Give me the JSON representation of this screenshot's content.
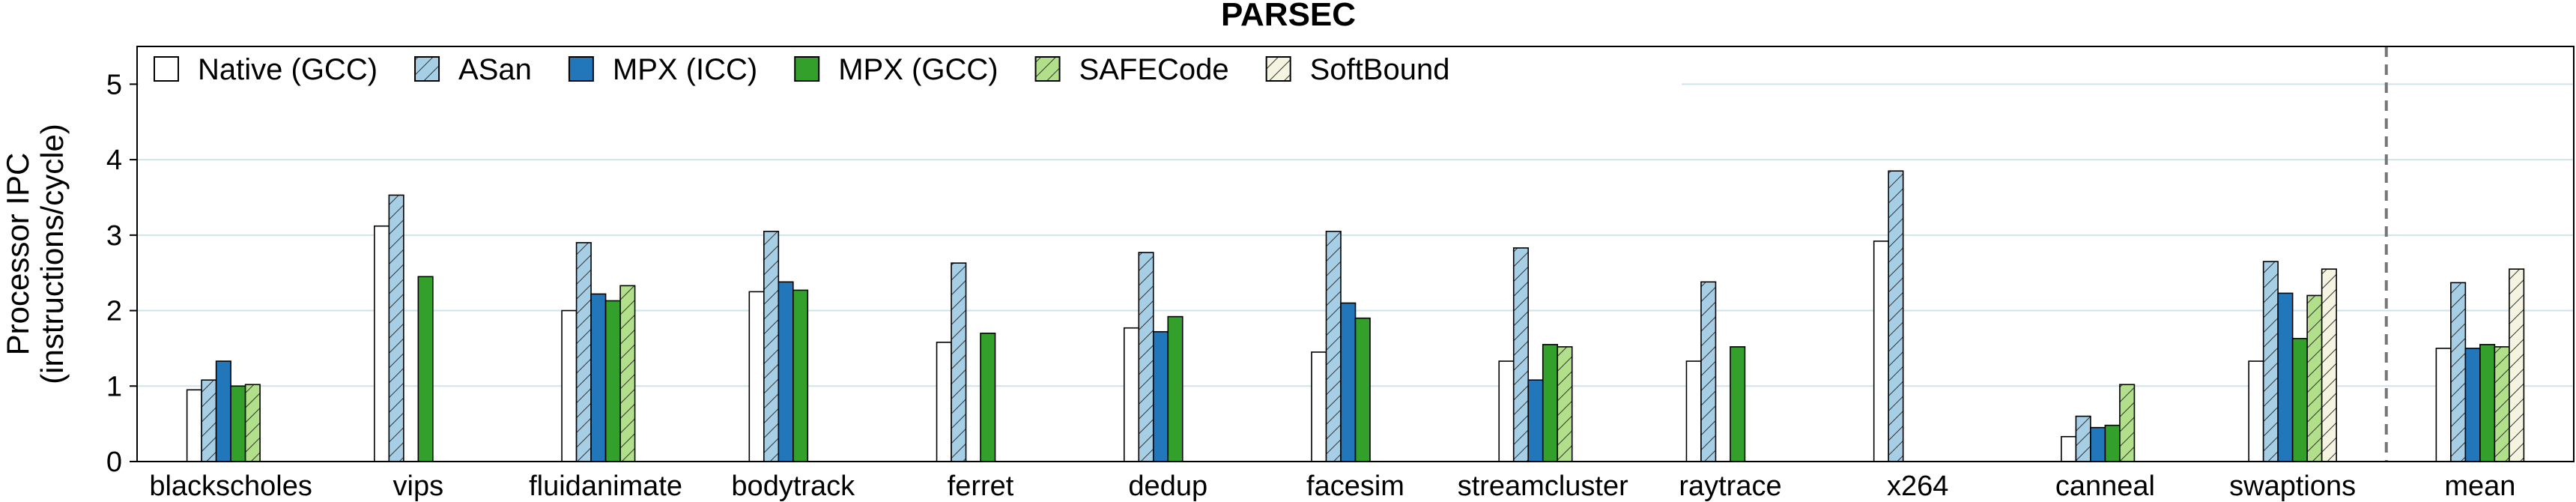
{
  "chart_data": {
    "type": "bar",
    "title": "PARSEC",
    "ylabel_lines": [
      "Processor IPC",
      "(instructions/cycle)"
    ],
    "ylim": [
      0,
      5.5
    ],
    "yticks": [
      0,
      1,
      2,
      3,
      4,
      5
    ],
    "grid": "horizontal",
    "legend_position": "top-left",
    "categories": [
      "blackscholes",
      "vips",
      "fluidanimate",
      "bodytrack",
      "ferret",
      "dedup",
      "facesim",
      "streamcluster",
      "raytrace",
      "x264",
      "canneal",
      "swaptions",
      "mean"
    ],
    "separator_before": "mean",
    "series": [
      {
        "name": "Native (GCC)",
        "pattern": "none",
        "color": "#ffffff",
        "values": [
          0.95,
          3.12,
          2.0,
          2.25,
          1.58,
          1.77,
          1.45,
          1.33,
          1.33,
          2.92,
          0.33,
          1.33,
          1.5
        ]
      },
      {
        "name": "ASan",
        "pattern": "hatch",
        "color": "#a6cfe6",
        "values": [
          1.08,
          3.53,
          2.9,
          3.05,
          2.63,
          2.77,
          3.05,
          2.83,
          2.38,
          3.85,
          0.6,
          2.65,
          2.37
        ]
      },
      {
        "name": "MPX (ICC)",
        "pattern": "none",
        "color": "#2277bb",
        "values": [
          1.33,
          null,
          2.22,
          2.38,
          null,
          1.72,
          2.1,
          1.08,
          null,
          null,
          0.45,
          2.23,
          1.5
        ]
      },
      {
        "name": "MPX (GCC)",
        "pattern": "none",
        "color": "#33a02c",
        "values": [
          1.0,
          2.45,
          2.13,
          2.27,
          1.7,
          1.92,
          1.9,
          1.55,
          1.52,
          null,
          0.48,
          1.63,
          1.55
        ]
      },
      {
        "name": "SAFECode",
        "pattern": "hatch",
        "color": "#b2df8a",
        "values": [
          1.02,
          null,
          2.33,
          null,
          null,
          null,
          null,
          1.52,
          null,
          null,
          1.02,
          2.2,
          1.52
        ]
      },
      {
        "name": "SoftBound",
        "pattern": "hatch",
        "color": "#f4f4e0",
        "values": [
          null,
          null,
          null,
          null,
          null,
          null,
          null,
          null,
          null,
          null,
          null,
          2.55,
          2.55
        ]
      }
    ]
  }
}
